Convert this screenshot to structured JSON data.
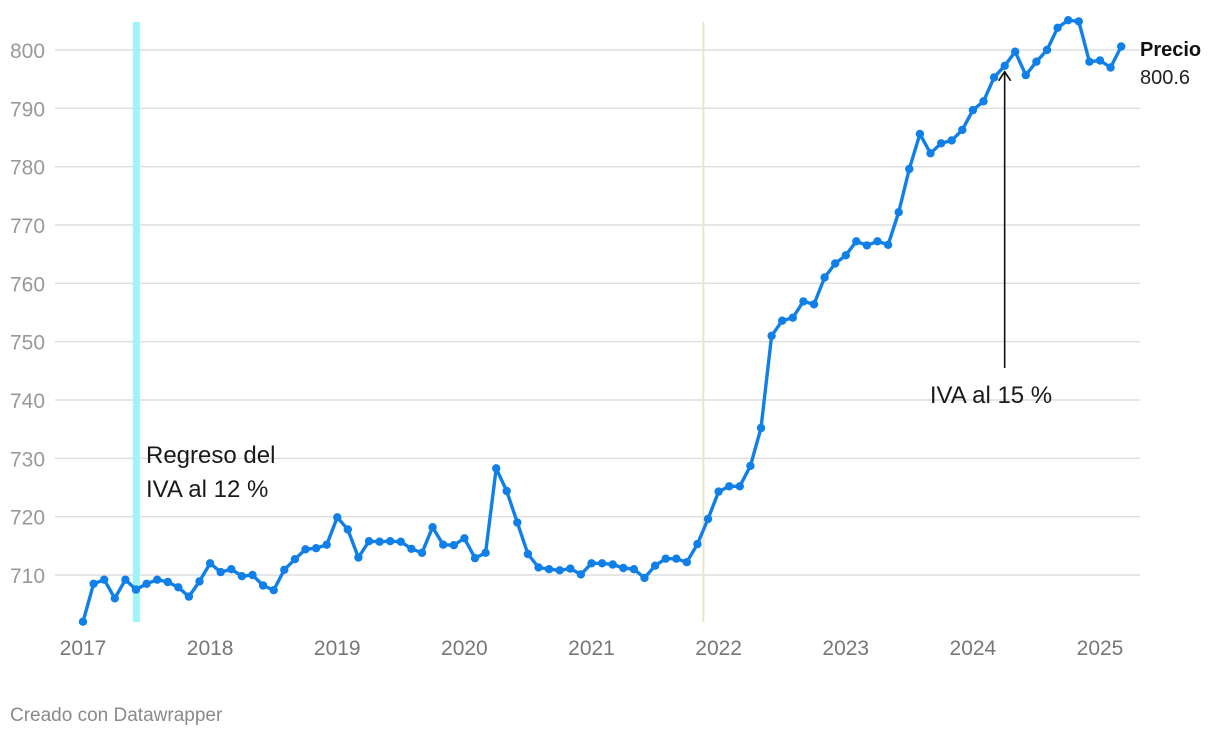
{
  "chart_data": {
    "type": "line",
    "title": "",
    "xlabel": "",
    "ylabel": "",
    "ylim": [
      702,
      806
    ],
    "xlim": [
      2017.0,
      2025.25
    ],
    "grid": true,
    "y_ticks": [
      710,
      720,
      730,
      740,
      750,
      760,
      770,
      780,
      790,
      800
    ],
    "x_ticks": [
      {
        "value": 2017,
        "label": "2017"
      },
      {
        "value": 2018,
        "label": "2018"
      },
      {
        "value": 2019,
        "label": "2019"
      },
      {
        "value": 2020,
        "label": "2020"
      },
      {
        "value": 2021,
        "label": "2021"
      },
      {
        "value": 2022,
        "label": "2022"
      },
      {
        "value": 2023,
        "label": "2023"
      },
      {
        "value": 2024,
        "label": "2024"
      },
      {
        "value": 2025,
        "label": "2025"
      }
    ],
    "series": [
      {
        "name": "Precio",
        "color": "#1080e8",
        "last_value_label": "800.6",
        "values": [
          702.0,
          708.5,
          709.2,
          706.0,
          709.2,
          707.5,
          708.5,
          709.2,
          708.8,
          707.9,
          706.3,
          708.9,
          712.0,
          710.5,
          711.0,
          709.8,
          710.0,
          708.2,
          707.4,
          710.9,
          712.7,
          714.4,
          714.6,
          715.2,
          719.9,
          717.8,
          713.0,
          715.8,
          715.7,
          715.8,
          715.7,
          714.5,
          713.8,
          718.2,
          715.2,
          715.1,
          716.3,
          712.9,
          713.8,
          728.3,
          724.4,
          719.0,
          713.6,
          711.3,
          711.0,
          710.8,
          711.1,
          710.1,
          712.0,
          712.0,
          711.8,
          711.2,
          711.0,
          709.5,
          711.6,
          712.8,
          712.8,
          712.2,
          715.3,
          719.6,
          724.3,
          725.2,
          725.2,
          728.7,
          735.2,
          751.0,
          753.6,
          754.1,
          756.9,
          756.4,
          761.0,
          763.4,
          764.8,
          767.2,
          766.5,
          767.2,
          766.6,
          772.2,
          779.6,
          785.6,
          782.3,
          784.0,
          784.5,
          786.3,
          789.7,
          791.2,
          795.3,
          797.3,
          799.7,
          795.7,
          798.0,
          800.0,
          803.8,
          805.1,
          804.9,
          798.0,
          798.2,
          797.0,
          800.6
        ]
      }
    ],
    "annotations": {
      "iva12_line_x": 2017.42,
      "iva12_color": "#9ff5f5",
      "iva12_text": [
        "Regreso del",
        "IVA al 12 %"
      ],
      "dotted_line_x": 2021.88,
      "dotted_line_color": "#ece4c8",
      "iva15_text": "IVA al 15 %",
      "iva15_x": 2024.25
    },
    "credit": "Creado con Datawrapper"
  }
}
